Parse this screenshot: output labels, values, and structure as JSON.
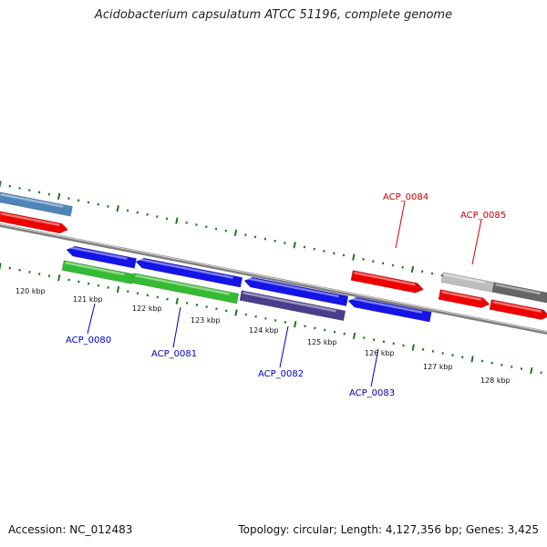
{
  "title": "Acidobacterium capsulatum ATCC 51196, complete genome",
  "footer": {
    "accession": "Accession: NC_012483",
    "summary": "Topology: circular; Length: 4,127,356 bp; Genes: 3,425"
  },
  "colors": {
    "tick": "#1a7a1a",
    "backbone": "#808080",
    "forward_label": "#cc0000",
    "reverse_label": "#0000bb",
    "red": "#ee0000",
    "blue": "#1414e6",
    "green": "#33bb33",
    "purple": "#4a3d8c",
    "steelblue": "#4f84b8",
    "lightgray": "#bdbdbd",
    "darkgray": "#666666"
  },
  "scale_ticks": [
    "120 kbp",
    "121 kbp",
    "122 kbp",
    "123 kbp",
    "124 kbp",
    "125 kbp",
    "126 kbp",
    "127 kbp",
    "128 kbp"
  ],
  "gene_labels": [
    {
      "text": "ACP_0084",
      "strand": "forward"
    },
    {
      "text": "ACP_0085",
      "strand": "forward"
    },
    {
      "text": "ACP_0080",
      "strand": "reverse"
    },
    {
      "text": "ACP_0081",
      "strand": "reverse"
    },
    {
      "text": "ACP_0082",
      "strand": "reverse"
    },
    {
      "text": "ACP_0083",
      "strand": "reverse"
    }
  ]
}
